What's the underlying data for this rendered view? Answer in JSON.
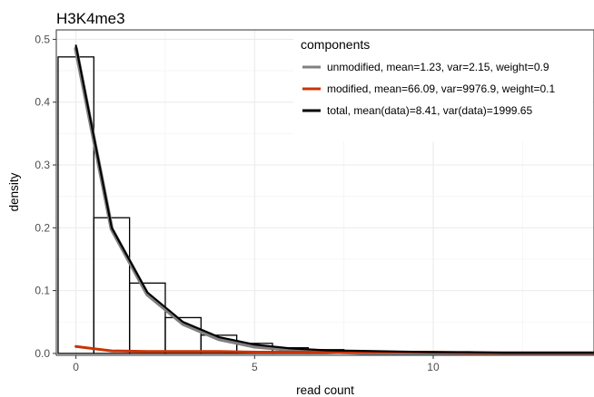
{
  "chart_data": {
    "type": "histogram-with-lines",
    "title": "H3K4me3",
    "xlabel": "read count",
    "ylabel": "density",
    "xlim": [
      -0.55,
      14.5
    ],
    "ylim": [
      -0.003,
      0.515
    ],
    "xticks": [
      0,
      5,
      10
    ],
    "yticks": [
      0.0,
      0.1,
      0.2,
      0.3,
      0.4,
      0.5
    ],
    "ytick_labels": [
      "0.0",
      "0.1",
      "0.2",
      "0.3",
      "0.4",
      "0.5"
    ],
    "grid": true,
    "histogram": {
      "bin_width": 1,
      "bins": [
        {
          "x": 0,
          "density": 0.472
        },
        {
          "x": 1,
          "density": 0.216
        },
        {
          "x": 2,
          "density": 0.112
        },
        {
          "x": 3,
          "density": 0.057
        },
        {
          "x": 4,
          "density": 0.029
        },
        {
          "x": 5,
          "density": 0.016
        },
        {
          "x": 6,
          "density": 0.009
        },
        {
          "x": 7,
          "density": 0.006
        },
        {
          "x": 8,
          "density": 0.004
        },
        {
          "x": 9,
          "density": 0.003
        },
        {
          "x": 10,
          "density": 0.002
        },
        {
          "x": 11,
          "density": 0.002
        },
        {
          "x": 12,
          "density": 0.001
        },
        {
          "x": 13,
          "density": 0.001
        },
        {
          "x": 14,
          "density": 0.001
        }
      ]
    },
    "legend": {
      "title": "components",
      "position": "top-right"
    },
    "series": [
      {
        "name": "unmodified, mean=1.23, var=2.15, weight=0.9",
        "color": "#808080",
        "x": [
          0,
          1,
          2,
          3,
          4,
          5,
          6,
          7,
          8,
          9,
          10,
          11,
          12,
          13,
          14,
          14.5
        ],
        "y": [
          0.485,
          0.198,
          0.094,
          0.047,
          0.023,
          0.011,
          0.006,
          0.003,
          0.001,
          0.001,
          0.0,
          0.0,
          0.0,
          0.0,
          0.0,
          0.0
        ]
      },
      {
        "name": "modified, mean=66.09, var=9976.9, weight=0.1",
        "color": "#cc3300",
        "x": [
          0,
          1,
          2,
          3,
          4,
          5,
          6,
          7,
          8,
          9,
          10,
          11,
          12,
          13,
          14,
          14.5
        ],
        "y": [
          0.011,
          0.004,
          0.003,
          0.003,
          0.003,
          0.002,
          0.002,
          0.002,
          0.002,
          0.002,
          0.002,
          0.001,
          0.001,
          0.001,
          0.001,
          0.001
        ]
      },
      {
        "name": "total, mean(data)=8.41, var(data)=1999.65",
        "color": "#000000",
        "x": [
          0,
          1,
          2,
          3,
          4,
          5,
          6,
          7,
          8,
          9,
          10,
          11,
          12,
          13,
          14,
          14.5
        ],
        "y": [
          0.49,
          0.2,
          0.097,
          0.05,
          0.026,
          0.014,
          0.008,
          0.005,
          0.004,
          0.003,
          0.002,
          0.002,
          0.001,
          0.001,
          0.001,
          0.001
        ]
      }
    ]
  }
}
